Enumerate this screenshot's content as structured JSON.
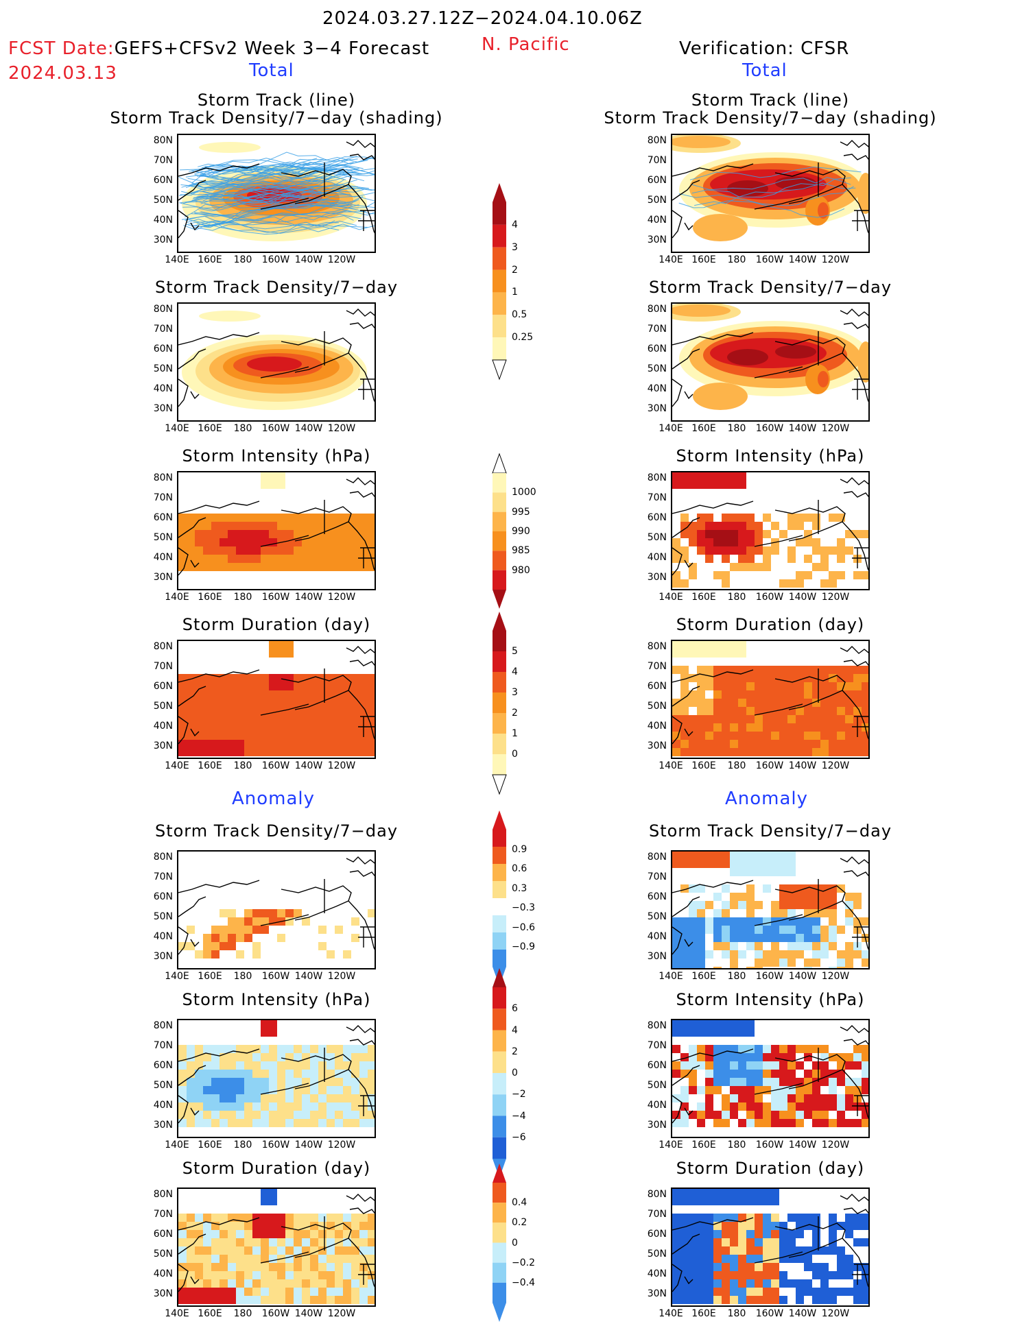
{
  "header": {
    "period": "2024.03.27.12Z−2024.04.10.06Z",
    "fcst_prefix": "FCST Date:",
    "fcst_title": "GEFS+CFSv2 Week 3−4 Forecast",
    "fcst_date": "2024.03.13",
    "region": "N. Pacific",
    "verification": "Verification: CFSR",
    "total_left": "Total",
    "total_right": "Total",
    "anomaly_left": "Anomaly",
    "anomaly_right": "Anomaly"
  },
  "panel_titles": {
    "track_line": "Storm Track (line)",
    "track_density_shading": "Storm Track Density/7−day (shading)",
    "track_density": "Storm Track Density/7−day",
    "intensity": "Storm Intensity (hPa)",
    "duration": "Storm Duration (day)"
  },
  "axes": {
    "lat": [
      "80N",
      "70N",
      "60N",
      "50N",
      "40N",
      "30N"
    ],
    "lon": [
      "140E",
      "160E",
      "180",
      "160W",
      "140W",
      "120W"
    ]
  },
  "colorbars": {
    "density": [
      "4",
      "3",
      "2",
      "1",
      "0.5",
      "0.25"
    ],
    "intensity": [
      "1000",
      "995",
      "990",
      "985",
      "980"
    ],
    "duration": [
      "5",
      "4",
      "3",
      "2",
      "1",
      "0"
    ],
    "density_anom": [
      "0.9",
      "0.6",
      "0.3",
      "−0.3",
      "−0.6",
      "−0.9"
    ],
    "intensity_anom": [
      "6",
      "4",
      "2",
      "0",
      "−2",
      "−4",
      "−6"
    ],
    "duration_anom": [
      "0.4",
      "0.2",
      "0",
      "−0.2",
      "−0.4"
    ]
  },
  "colors": {
    "warm": [
      "#fff7b8",
      "#fde08a",
      "#fdb44a",
      "#f7901e",
      "#ef5a1e",
      "#d7191c",
      "#a50f15"
    ],
    "cool": [
      "#c7eefa",
      "#8fd3f5",
      "#3c8ee8",
      "#1f5fd6"
    ],
    "track_line": "#3aa0e6"
  }
}
